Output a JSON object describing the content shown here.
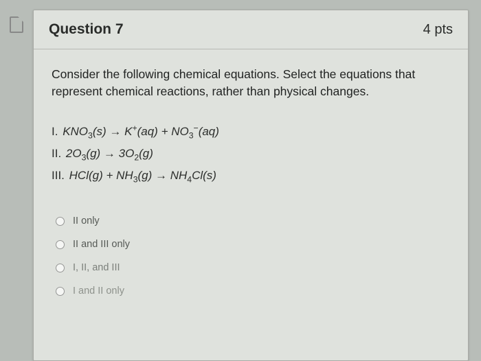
{
  "header": {
    "title": "Question 7",
    "points": "4 pts"
  },
  "prompt": "Consider the following chemical equations. Select the equations that represent chemical reactions, rather than physical changes.",
  "equations": {
    "eq1": {
      "roman": "I.",
      "html": "KNO<sub>3</sub>(s) → K<sup>+</sup>(aq) + NO<sub>3</sub><sup>−</sup>(aq)"
    },
    "eq2": {
      "roman": "II.",
      "html": "2O<sub>3</sub>(g) → 3O<sub>2</sub>(g)"
    },
    "eq3": {
      "roman": "III.",
      "html": "HCl(g) + NH<sub>3</sub>(g) → NH<sub>4</sub>Cl(s)"
    }
  },
  "options": {
    "a": "II only",
    "b": "II and III only",
    "c": "I, II, and III",
    "d": "I and II only"
  },
  "colors": {
    "page_bg": "#b8bdb8",
    "card_bg": "#dfe2dd",
    "border": "#a8aaa5",
    "text": "#2a2c2a"
  }
}
